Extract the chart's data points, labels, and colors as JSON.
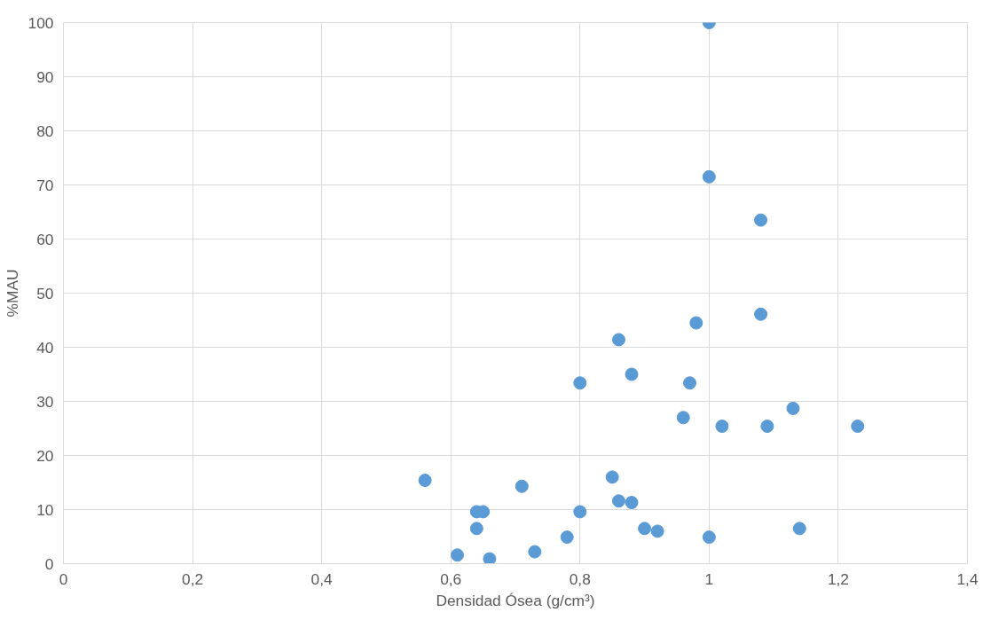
{
  "chart_data": {
    "type": "scatter",
    "xlabel": "Densidad Ósea (g/cm³)",
    "ylabel": "%MAU",
    "x": [
      1.0,
      1.0,
      1.08,
      1.08,
      0.98,
      0.86,
      0.88,
      0.8,
      0.97,
      1.13,
      0.96,
      1.02,
      1.09,
      1.23,
      0.56,
      0.85,
      0.71,
      0.86,
      0.88,
      0.64,
      0.65,
      0.8,
      0.64,
      0.9,
      0.92,
      1.14,
      0.78,
      1.0,
      0.61,
      0.73,
      0.66
    ],
    "series": [
      {
        "color": "#5b9bd5",
        "values": [
          100,
          71.5,
          63.5,
          46.1,
          44.5,
          41.4,
          35.0,
          33.4,
          33.4,
          28.7,
          27.0,
          25.4,
          25.4,
          25.4,
          15.4,
          16.0,
          14.3,
          11.6,
          11.3,
          9.6,
          9.6,
          9.6,
          6.5,
          6.5,
          6.0,
          6.5,
          4.9,
          4.9,
          1.6,
          2.2,
          0.9
        ]
      }
    ],
    "xlim": [
      0,
      1.4
    ],
    "ylim": [
      0,
      100
    ],
    "xticks": [
      0,
      {
        "value": 0.2,
        "label": "0,2"
      },
      {
        "value": 0.4,
        "label": "0,4"
      },
      {
        "value": 0.6,
        "label": "0,6"
      },
      {
        "value": 0.8,
        "label": "0,8"
      },
      1,
      {
        "value": 1.2,
        "label": "1,2"
      },
      {
        "value": 1.4,
        "label": "1,4"
      }
    ],
    "yticks": [
      0,
      10,
      20,
      30,
      40,
      50,
      60,
      70,
      80,
      90,
      100
    ],
    "grid": true,
    "marker": "circle"
  }
}
